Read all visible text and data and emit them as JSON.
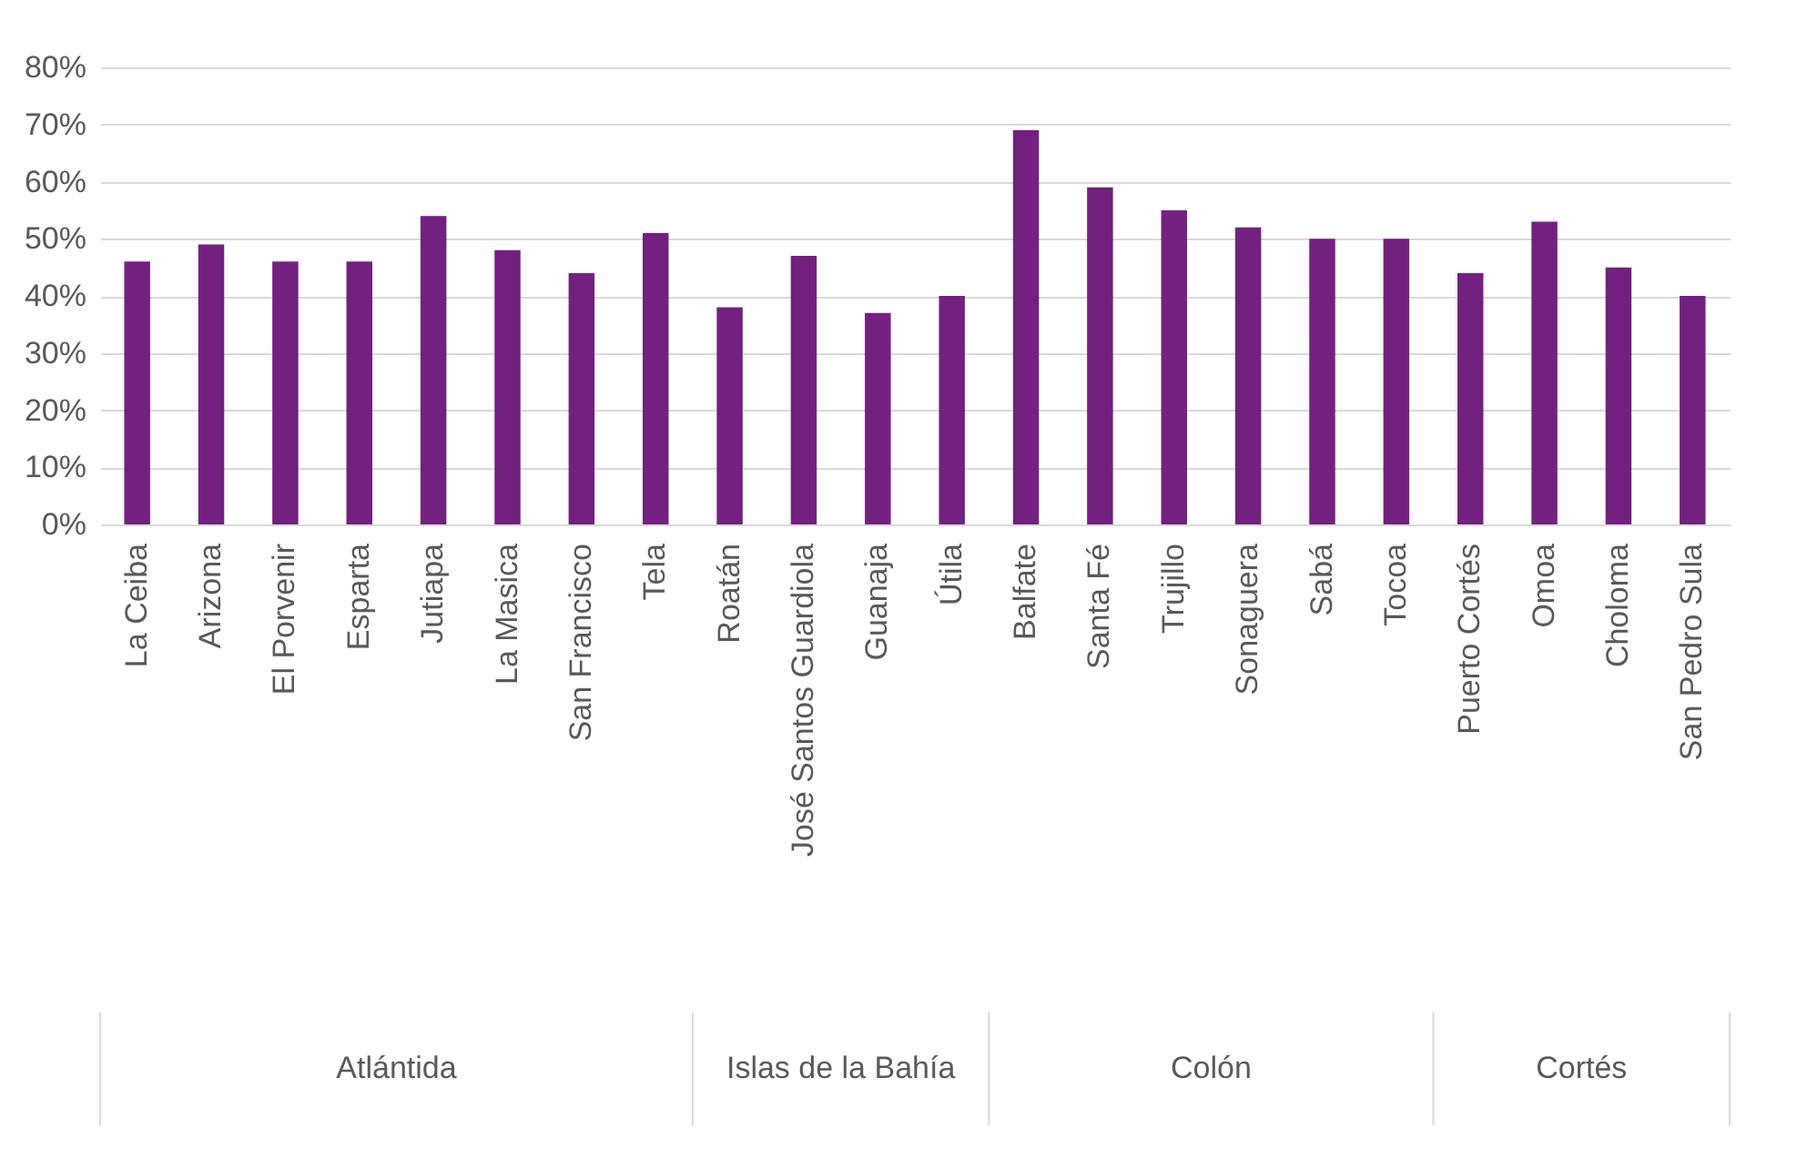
{
  "chart_data": {
    "type": "bar",
    "categories": [
      "La Ceiba",
      "Arizona",
      "El Porvenir",
      "Esparta",
      "Jutiapa",
      "La Masica",
      "San Francisco",
      "Tela",
      "Roatán",
      "José Santos Guardiola",
      "Guanaja",
      "Útila",
      "Balfate",
      "Santa Fé",
      "Trujillo",
      "Sonaguera",
      "Sabá",
      "Tocoa",
      "Puerto Cortés",
      "Omoa",
      "Choloma",
      "San Pedro Sula"
    ],
    "values": [
      46,
      49,
      46,
      46,
      54,
      48,
      44,
      51,
      38,
      47,
      37,
      40,
      69,
      59,
      55,
      52,
      50,
      50,
      44,
      53,
      45,
      40
    ],
    "color": "#72217f",
    "ylim": [
      0,
      80
    ],
    "yticks": [
      {
        "value": 0,
        "label": "0%"
      },
      {
        "value": 10,
        "label": "10%"
      },
      {
        "value": 20,
        "label": "20%"
      },
      {
        "value": 30,
        "label": "30%"
      },
      {
        "value": 40,
        "label": "40%"
      },
      {
        "value": 50,
        "label": "50%"
      },
      {
        "value": 60,
        "label": "60%"
      },
      {
        "value": 70,
        "label": "70%"
      },
      {
        "value": 80,
        "label": "80%"
      }
    ],
    "grid": "y",
    "annotations": [
      "Atlántida",
      "Islas de la Bahía",
      "Colón",
      "Cortés"
    ]
  }
}
